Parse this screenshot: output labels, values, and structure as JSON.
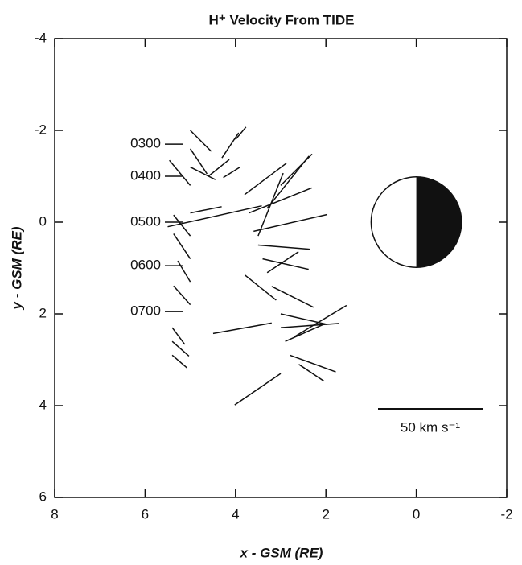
{
  "chart_data": {
    "type": "vector",
    "title": "H⁺ Velocity From TIDE",
    "xlabel": "x - GSM (RE)",
    "ylabel": "y - GSM (RE)",
    "xlim": [
      8,
      -2
    ],
    "ylim": [
      -4,
      6
    ],
    "xticks": [
      8,
      6,
      4,
      2,
      0,
      -2
    ],
    "yticks": [
      -4,
      -2,
      0,
      2,
      4,
      6
    ],
    "color": "#111111",
    "x": [
      5.0,
      5.0,
      5.0,
      5.0,
      5.0,
      5.0,
      5.0,
      5.0,
      5.0,
      5.4,
      5.4,
      5.4,
      5.5,
      4.6,
      4.3,
      4.0,
      3.9,
      3.8,
      3.7,
      3.6,
      3.5,
      3.4,
      3.3,
      3.2,
      3.1,
      3.0,
      3.0,
      2.9,
      2.8,
      2.6,
      3.0,
      3.5,
      3.3,
      3.0,
      3.2,
      2.7
    ],
    "y": [
      -2.0,
      -1.6,
      -1.2,
      -0.8,
      -0.2,
      0.3,
      0.8,
      1.3,
      1.8,
      2.3,
      2.6,
      2.9,
      0.1,
      -1.0,
      -1.4,
      -1.8,
      -1.2,
      -0.6,
      -0.2,
      0.2,
      0.5,
      0.8,
      1.1,
      1.4,
      1.7,
      2.0,
      2.3,
      2.6,
      2.9,
      3.1,
      3.3,
      0.3,
      -0.3,
      -0.8,
      2.2,
      2.5
    ],
    "u": [
      -10,
      -8,
      -12,
      10,
      -15,
      8,
      8,
      6,
      8,
      -6,
      -8,
      -7,
      -45,
      -10,
      -8,
      -5,
      8,
      -20,
      -30,
      -35,
      -25,
      -22,
      -15,
      -20,
      15,
      -22,
      -28,
      -18,
      -22,
      -12,
      22,
      -12,
      -20,
      -15,
      28,
      -25
    ],
    "v": [
      10,
      12,
      6,
      -12,
      -3,
      -10,
      -12,
      -10,
      -9,
      8,
      7,
      6,
      -10,
      -8,
      -12,
      -6,
      5,
      -15,
      -12,
      -8,
      2,
      5,
      -10,
      10,
      -12,
      5,
      -2,
      -8,
      8,
      8,
      15,
      -30,
      -25,
      -15,
      5,
      -15
    ],
    "time_labels": [
      {
        "label": "0300",
        "y": -1.7
      },
      {
        "label": "0400",
        "y": -1.0
      },
      {
        "label": "0500",
        "y": 0
      },
      {
        "label": "0600",
        "y": 0.95
      },
      {
        "label": "0700",
        "y": 1.95
      }
    ],
    "earth": {
      "x": 0,
      "y": 0,
      "radius": 1
    },
    "scale_bar": {
      "label": "50 km s⁻¹",
      "value": 50
    }
  }
}
